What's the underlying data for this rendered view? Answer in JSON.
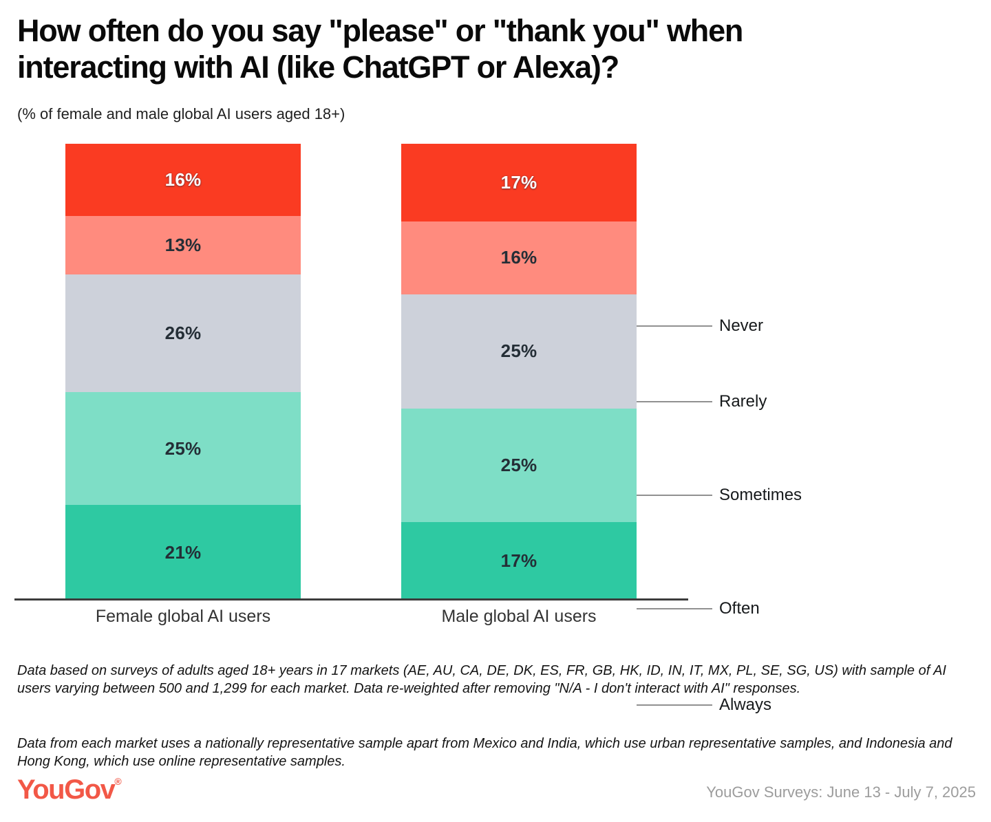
{
  "title": {
    "line1": "How often do you say \"please\" or \"thank you\" when",
    "line2": "interacting with AI (like ChatGPT or Alexa)?"
  },
  "subtitle": "(% of female and male global AI users aged 18+)",
  "chart_data": {
    "type": "bar",
    "stacked": true,
    "orientation": "vertical",
    "categories": [
      "Female global AI users",
      "Male global AI users"
    ],
    "segments": [
      "Never",
      "Rarely",
      "Sometimes",
      "Often",
      "Always"
    ],
    "series": [
      {
        "name": "Female global AI users",
        "values": [
          16,
          13,
          26,
          25,
          21
        ]
      },
      {
        "name": "Male global AI users",
        "values": [
          17,
          16,
          25,
          25,
          17
        ]
      }
    ],
    "value_suffix": "%",
    "segment_colors": {
      "Never": "#fa3b22",
      "Rarely": "#ff8b7e",
      "Sometimes": "#cdd1da",
      "Often": "#7edec6",
      "Always": "#2ec9a2"
    },
    "legend_position": "right",
    "grid": false,
    "ylim": [
      0,
      100
    ]
  },
  "footnotes": {
    "para1": "Data based on surveys of adults aged 18+ years in 17 markets (AE, AU, CA, DE, DK, ES, FR, GB, HK, ID, IN, IT, MX, PL, SE, SG, US) with sample of AI users varying between 500 and 1,299 for each market. Data re-weighted after removing \"N/A - I don't interact with AI\" responses.",
    "para2": "Data from each market uses a nationally representative sample apart from Mexico and India, which use urban representative samples, and Indonesia and Hong Kong, which use online representative samples."
  },
  "footer": {
    "logo_text": "YouGov",
    "registered_mark": "®",
    "source_text": "YouGov Surveys: June 13 - July 7, 2025"
  },
  "colors": {
    "background": "#ffffff",
    "title_text": "#0a0a0a",
    "segment_label_dark": "#242e36",
    "segment_label_light": "#ffffff",
    "axis": "#3c3c3c",
    "leader_line": "#909090",
    "logo_red": "#f25847",
    "source_gray": "#9c9c9c"
  }
}
